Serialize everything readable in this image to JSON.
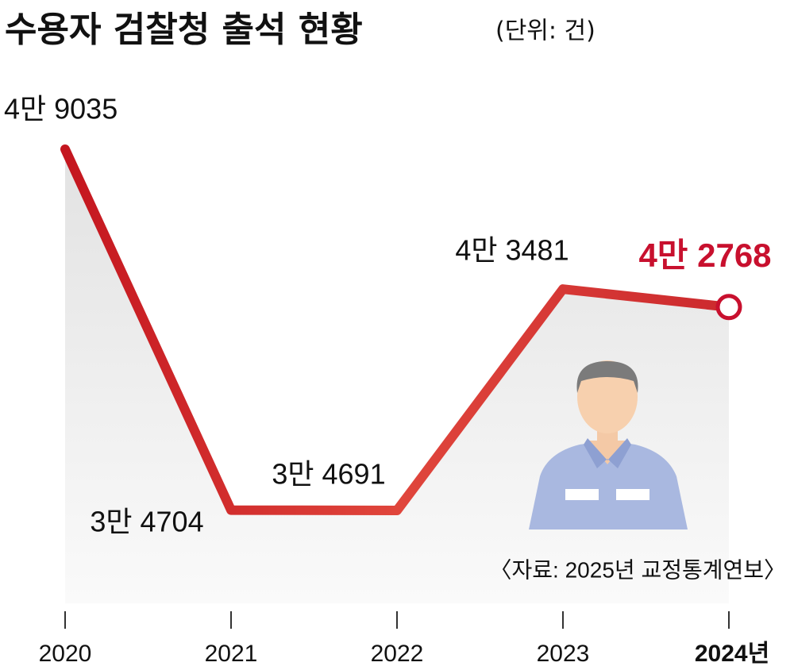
{
  "chart_data": {
    "type": "line",
    "title": "수용자 검찰청 출석 현황",
    "subtitle": "(단위: 건)",
    "source": "〈자료: 2025년 교정통계연보〉",
    "categories": [
      "2020",
      "2021",
      "2022",
      "2023",
      "2024년"
    ],
    "values": [
      49035,
      34704,
      34691,
      43481,
      42768
    ],
    "value_labels": [
      "4만 9035",
      "3만 4704",
      "3만 4691",
      "4만 3481",
      "4만 2768"
    ],
    "color": "#d9322f",
    "highlight_color": "#c8102e"
  }
}
